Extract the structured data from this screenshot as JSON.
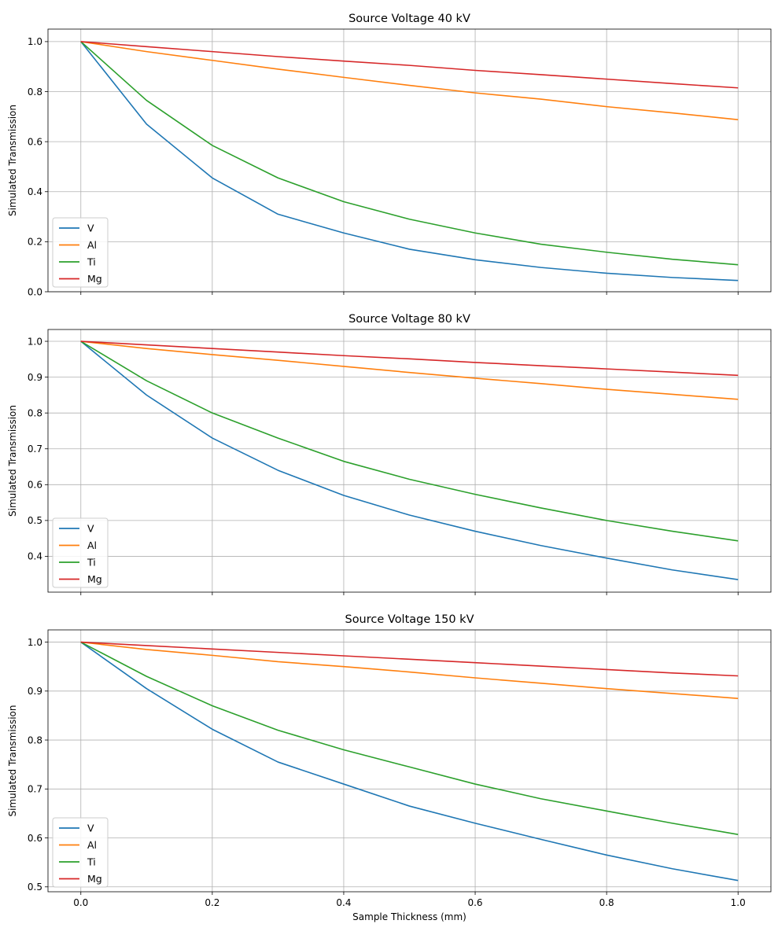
{
  "chart_data": [
    {
      "type": "line",
      "title": "Source Voltage 40 kV",
      "xlabel": "",
      "ylabel": "Simulated Transmission",
      "xlim": [
        -0.05,
        1.05
      ],
      "ylim": [
        0.0,
        1.05
      ],
      "xticks": [
        "0.0",
        "0.2",
        "0.4",
        "0.6",
        "0.8",
        "1.0"
      ],
      "xtick_values": [
        0.0,
        0.2,
        0.4,
        0.6,
        0.8,
        1.0
      ],
      "xtick_labels_visible": false,
      "yticks": [
        "0.0",
        "0.2",
        "0.4",
        "0.6",
        "0.8",
        "1.0"
      ],
      "ytick_values": [
        0.0,
        0.2,
        0.4,
        0.6,
        0.8,
        1.0
      ],
      "grid": true,
      "legend": "lower-left",
      "x": [
        0.0,
        0.1,
        0.2,
        0.3,
        0.4,
        0.5,
        0.6,
        0.7,
        0.8,
        0.9,
        1.0
      ],
      "series": [
        {
          "name": "V",
          "color": "#1f77b4",
          "values": [
            1.0,
            0.67,
            0.455,
            0.31,
            0.235,
            0.17,
            0.128,
            0.097,
            0.074,
            0.057,
            0.045
          ]
        },
        {
          "name": "Al",
          "color": "#ff7f0e",
          "values": [
            1.0,
            0.96,
            0.925,
            0.89,
            0.857,
            0.825,
            0.795,
            0.77,
            0.74,
            0.715,
            0.688
          ]
        },
        {
          "name": "Ti",
          "color": "#2ca02c",
          "values": [
            1.0,
            0.765,
            0.585,
            0.455,
            0.36,
            0.29,
            0.235,
            0.19,
            0.158,
            0.13,
            0.108
          ]
        },
        {
          "name": "Mg",
          "color": "#d62728",
          "values": [
            1.0,
            0.98,
            0.96,
            0.94,
            0.922,
            0.905,
            0.885,
            0.868,
            0.85,
            0.832,
            0.815
          ]
        }
      ]
    },
    {
      "type": "line",
      "title": "Source Voltage 80 kV",
      "xlabel": "",
      "ylabel": "Simulated Transmission",
      "xlim": [
        -0.05,
        1.05
      ],
      "ylim": [
        0.3,
        1.033
      ],
      "xticks": [
        "0.0",
        "0.2",
        "0.4",
        "0.6",
        "0.8",
        "1.0"
      ],
      "xtick_values": [
        0.0,
        0.2,
        0.4,
        0.6,
        0.8,
        1.0
      ],
      "xtick_labels_visible": false,
      "yticks": [
        "0.4",
        "0.5",
        "0.6",
        "0.7",
        "0.8",
        "0.9",
        "1.0"
      ],
      "ytick_values": [
        0.4,
        0.5,
        0.6,
        0.7,
        0.8,
        0.9,
        1.0
      ],
      "grid": true,
      "legend": "lower-left",
      "x": [
        0.0,
        0.1,
        0.2,
        0.3,
        0.4,
        0.5,
        0.6,
        0.7,
        0.8,
        0.9,
        1.0
      ],
      "series": [
        {
          "name": "V",
          "color": "#1f77b4",
          "values": [
            1.0,
            0.85,
            0.73,
            0.64,
            0.57,
            0.515,
            0.47,
            0.43,
            0.395,
            0.362,
            0.335
          ]
        },
        {
          "name": "Al",
          "color": "#ff7f0e",
          "values": [
            1.0,
            0.98,
            0.963,
            0.947,
            0.93,
            0.913,
            0.897,
            0.882,
            0.866,
            0.852,
            0.838
          ]
        },
        {
          "name": "Ti",
          "color": "#2ca02c",
          "values": [
            1.0,
            0.89,
            0.8,
            0.73,
            0.665,
            0.615,
            0.573,
            0.535,
            0.5,
            0.47,
            0.443
          ]
        },
        {
          "name": "Mg",
          "color": "#d62728",
          "values": [
            1.0,
            0.99,
            0.98,
            0.97,
            0.96,
            0.951,
            0.941,
            0.932,
            0.923,
            0.914,
            0.905
          ]
        }
      ]
    },
    {
      "type": "line",
      "title": "Source Voltage 150 kV",
      "xlabel": "Sample Thickness (mm)",
      "ylabel": "Simulated Transmission",
      "xlim": [
        -0.05,
        1.05
      ],
      "ylim": [
        0.49,
        1.025
      ],
      "xticks": [
        "0.0",
        "0.2",
        "0.4",
        "0.6",
        "0.8",
        "1.0"
      ],
      "xtick_values": [
        0.0,
        0.2,
        0.4,
        0.6,
        0.8,
        1.0
      ],
      "xtick_labels_visible": true,
      "yticks": [
        "0.5",
        "0.6",
        "0.7",
        "0.8",
        "0.9",
        "1.0"
      ],
      "ytick_values": [
        0.5,
        0.6,
        0.7,
        0.8,
        0.9,
        1.0
      ],
      "grid": true,
      "legend": "lower-left",
      "x": [
        0.0,
        0.1,
        0.2,
        0.3,
        0.4,
        0.5,
        0.6,
        0.7,
        0.8,
        0.9,
        1.0
      ],
      "series": [
        {
          "name": "V",
          "color": "#1f77b4",
          "values": [
            1.0,
            0.905,
            0.822,
            0.755,
            0.71,
            0.665,
            0.63,
            0.597,
            0.565,
            0.537,
            0.513
          ]
        },
        {
          "name": "Al",
          "color": "#ff7f0e",
          "values": [
            1.0,
            0.985,
            0.973,
            0.96,
            0.95,
            0.939,
            0.927,
            0.916,
            0.905,
            0.895,
            0.885
          ]
        },
        {
          "name": "Ti",
          "color": "#2ca02c",
          "values": [
            1.0,
            0.93,
            0.87,
            0.82,
            0.78,
            0.745,
            0.71,
            0.68,
            0.655,
            0.63,
            0.607
          ]
        },
        {
          "name": "Mg",
          "color": "#d62728",
          "values": [
            1.0,
            0.993,
            0.986,
            0.979,
            0.972,
            0.965,
            0.958,
            0.951,
            0.944,
            0.937,
            0.931
          ]
        }
      ]
    }
  ]
}
